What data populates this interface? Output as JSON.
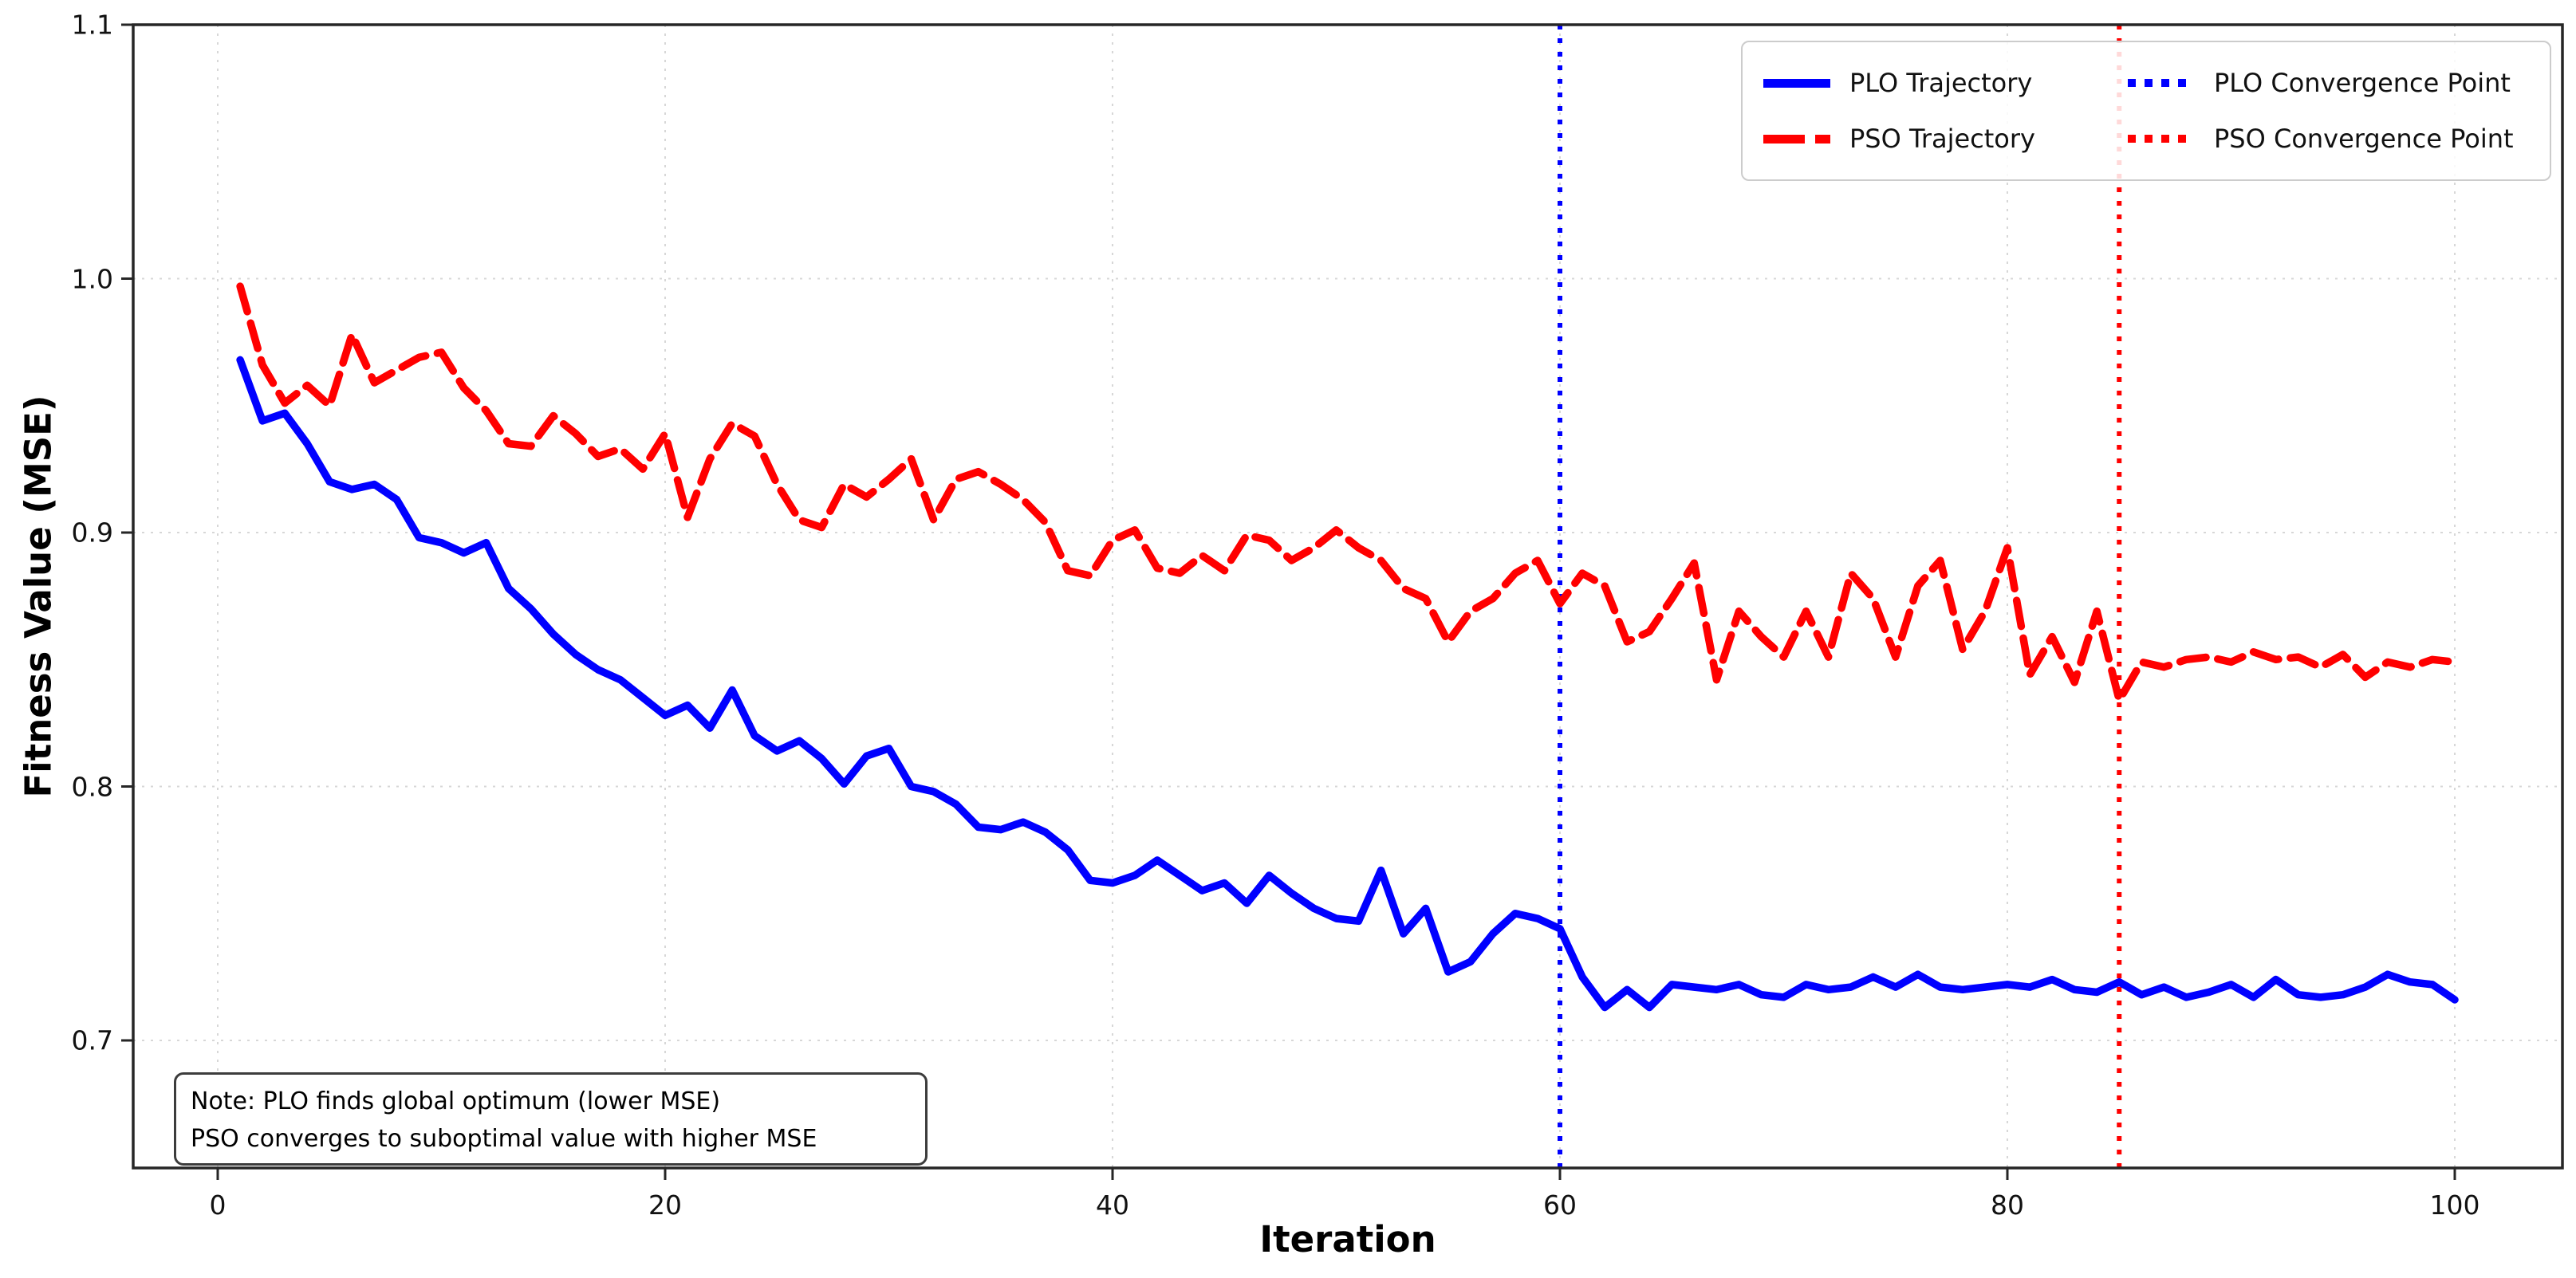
{
  "figure": {
    "xlabel": "Iteration",
    "ylabel": "Fitness Value (MSE)",
    "note_line1": "Note: PLO finds global optimum (lower MSE)",
    "note_line2": "PSO converges to suboptimal value with higher MSE",
    "background_color": "#ffffff",
    "plo_color": "#0000ff",
    "pso_color": "#ff0000"
  },
  "legend": {
    "entries": [
      {
        "label": "PLO Trajectory",
        "color": "#0000ff",
        "style": "solid"
      },
      {
        "label": "PSO Trajectory",
        "color": "#ff0000",
        "style": "dashed"
      },
      {
        "label": "PLO Convergence Point",
        "color": "#0000ff",
        "style": "dotted"
      },
      {
        "label": "PSO Convergence Point",
        "color": "#ff0000",
        "style": "dotted"
      }
    ]
  },
  "chart_data": {
    "type": "line",
    "title": "",
    "xlabel": "Iteration",
    "ylabel": "Fitness Value (MSE)",
    "xticks": [
      0,
      20,
      40,
      60,
      80,
      100
    ],
    "yticks": [
      0.7,
      0.8,
      0.9,
      1.0,
      1.1
    ],
    "xlim": [
      -3.8,
      104.8
    ],
    "ylim": [
      0.65,
      1.1
    ],
    "grid": true,
    "legend_position": "upper right",
    "annotation": "Note: PLO finds global optimum (lower MSE)\nPSO converges to suboptimal value with higher MSE",
    "x": [
      1,
      2,
      3,
      4,
      5,
      6,
      7,
      8,
      9,
      10,
      11,
      12,
      13,
      14,
      15,
      16,
      17,
      18,
      19,
      20,
      21,
      22,
      23,
      24,
      25,
      26,
      27,
      28,
      29,
      30,
      31,
      32,
      33,
      34,
      35,
      36,
      37,
      38,
      39,
      40,
      41,
      42,
      43,
      44,
      45,
      46,
      47,
      48,
      49,
      50,
      51,
      52,
      53,
      54,
      55,
      56,
      57,
      58,
      59,
      60,
      61,
      62,
      63,
      64,
      65,
      66,
      67,
      68,
      69,
      70,
      71,
      72,
      73,
      74,
      75,
      76,
      77,
      78,
      79,
      80,
      81,
      82,
      83,
      84,
      85,
      86,
      87,
      88,
      89,
      90,
      91,
      92,
      93,
      94,
      95,
      96,
      97,
      98,
      99,
      100
    ],
    "series": [
      {
        "name": "PLO Trajectory",
        "color": "#0000ff",
        "style": "solid",
        "converges_at": 60,
        "values": [
          0.968,
          0.944,
          0.947,
          0.935,
          0.92,
          0.917,
          0.919,
          0.913,
          0.898,
          0.896,
          0.892,
          0.896,
          0.878,
          0.87,
          0.86,
          0.852,
          0.846,
          0.842,
          0.835,
          0.828,
          0.832,
          0.823,
          0.838,
          0.82,
          0.814,
          0.818,
          0.811,
          0.801,
          0.812,
          0.815,
          0.8,
          0.798,
          0.793,
          0.784,
          0.783,
          0.786,
          0.782,
          0.775,
          0.763,
          0.762,
          0.765,
          0.771,
          0.765,
          0.759,
          0.762,
          0.754,
          0.765,
          0.758,
          0.752,
          0.748,
          0.747,
          0.767,
          0.742,
          0.752,
          0.727,
          0.731,
          0.742,
          0.75,
          0.748,
          0.744,
          0.725,
          0.713,
          0.72,
          0.713,
          0.722,
          0.721,
          0.72,
          0.722,
          0.718,
          0.717,
          0.722,
          0.72,
          0.721,
          0.725,
          0.721,
          0.726,
          0.721,
          0.72,
          0.721,
          0.722,
          0.721,
          0.724,
          0.72,
          0.719,
          0.723,
          0.718,
          0.721,
          0.717,
          0.719,
          0.722,
          0.717,
          0.724,
          0.718,
          0.717,
          0.718,
          0.721,
          0.726,
          0.723,
          0.722,
          0.716
        ]
      },
      {
        "name": "PSO Trajectory",
        "color": "#ff0000",
        "style": "dashed",
        "converges_at": 85,
        "values": [
          0.997,
          0.966,
          0.951,
          0.958,
          0.95,
          0.978,
          0.959,
          0.964,
          0.969,
          0.971,
          0.957,
          0.948,
          0.935,
          0.934,
          0.946,
          0.939,
          0.93,
          0.933,
          0.925,
          0.939,
          0.906,
          0.929,
          0.943,
          0.938,
          0.919,
          0.905,
          0.902,
          0.919,
          0.914,
          0.921,
          0.929,
          0.905,
          0.921,
          0.924,
          0.919,
          0.913,
          0.904,
          0.885,
          0.883,
          0.897,
          0.901,
          0.886,
          0.884,
          0.891,
          0.885,
          0.899,
          0.897,
          0.889,
          0.894,
          0.901,
          0.894,
          0.889,
          0.878,
          0.874,
          0.857,
          0.869,
          0.874,
          0.884,
          0.889,
          0.872,
          0.884,
          0.879,
          0.857,
          0.861,
          0.874,
          0.888,
          0.842,
          0.869,
          0.859,
          0.851,
          0.869,
          0.851,
          0.884,
          0.874,
          0.851,
          0.879,
          0.889,
          0.854,
          0.869,
          0.894,
          0.844,
          0.859,
          0.841,
          0.869,
          0.834,
          0.849,
          0.847,
          0.85,
          0.851,
          0.849,
          0.853,
          0.85,
          0.851,
          0.847,
          0.852,
          0.843,
          0.849,
          0.847,
          0.85,
          0.849
        ]
      }
    ],
    "vlines": [
      {
        "name": "PLO Convergence Point",
        "x": 60,
        "color": "#0000ff",
        "style": "dotted"
      },
      {
        "name": "PSO Convergence Point",
        "x": 85,
        "color": "#ff0000",
        "style": "dotted"
      }
    ]
  }
}
